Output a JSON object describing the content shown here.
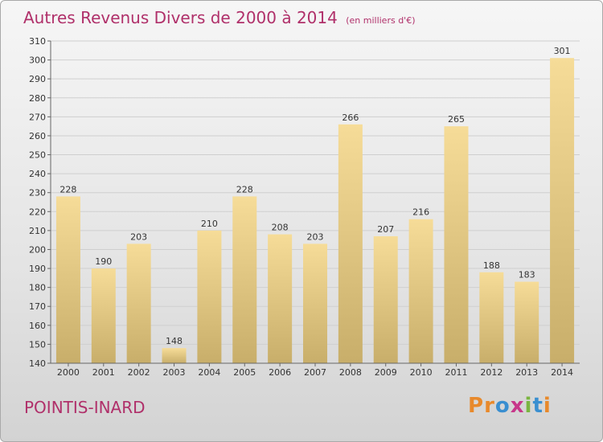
{
  "title": "Autres Revenus Divers de 2000 à 2014",
  "unit_note": "(en milliers d'€)",
  "commune": "POINTIS-INARD",
  "brand": {
    "name": "Proxiti",
    "letters": [
      "P",
      "r",
      "o",
      "x",
      "i",
      "t",
      "i"
    ],
    "colors": [
      "#e8892b",
      "#e8892b",
      "#3a8fd0",
      "#c7378a",
      "#7ab540",
      "#3a8fd0",
      "#e8892b"
    ]
  },
  "colors": {
    "title": "#b0306a",
    "bar_light": "#f6dc98",
    "bar_dark": "#c8ae6a"
  },
  "chart_data": {
    "type": "bar",
    "title": "Autres Revenus Divers de 2000 à 2014",
    "xlabel": "",
    "ylabel": "",
    "categories": [
      "2000",
      "2001",
      "2002",
      "2003",
      "2004",
      "2005",
      "2006",
      "2007",
      "2008",
      "2009",
      "2010",
      "2011",
      "2012",
      "2013",
      "2014"
    ],
    "values": [
      228,
      190,
      203,
      148,
      210,
      228,
      208,
      203,
      266,
      207,
      216,
      265,
      188,
      183,
      301
    ],
    "ylim": [
      140,
      310
    ],
    "yticks": [
      140,
      150,
      160,
      170,
      180,
      190,
      200,
      210,
      220,
      230,
      240,
      250,
      260,
      270,
      280,
      290,
      300,
      310
    ],
    "grid": true,
    "legend": "none"
  }
}
